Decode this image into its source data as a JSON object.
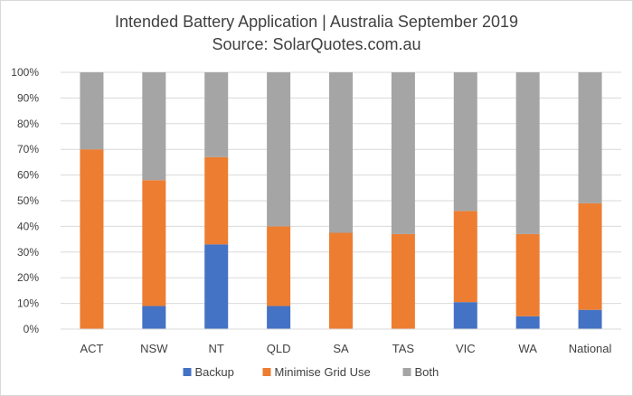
{
  "chart_data": {
    "type": "bar",
    "stacked": true,
    "title": "Intended Battery Application | Australia September 2019",
    "subtitle": "Source: SolarQuotes.com.au",
    "xlabel": "",
    "ylabel": "",
    "ylim": [
      0,
      100
    ],
    "y_ticks": [
      "0%",
      "10%",
      "20%",
      "30%",
      "40%",
      "50%",
      "60%",
      "70%",
      "80%",
      "90%",
      "100%"
    ],
    "grid": true,
    "legend_position": "bottom",
    "categories": [
      "ACT",
      "NSW",
      "NT",
      "QLD",
      "SA",
      "TAS",
      "VIC",
      "WA",
      "National"
    ],
    "series": [
      {
        "name": "Backup",
        "color": "#4472C4",
        "values": [
          0,
          9,
          33,
          9,
          0,
          0,
          10.5,
          5,
          7.5
        ]
      },
      {
        "name": "Minimise Grid Use",
        "color": "#ED7D31",
        "values": [
          70,
          49,
          34,
          31,
          37.5,
          37,
          35.5,
          32,
          41.5
        ]
      },
      {
        "name": "Both",
        "color": "#A5A5A5",
        "values": [
          30,
          42,
          33,
          60,
          62.5,
          63,
          54,
          63,
          51
        ]
      }
    ]
  }
}
